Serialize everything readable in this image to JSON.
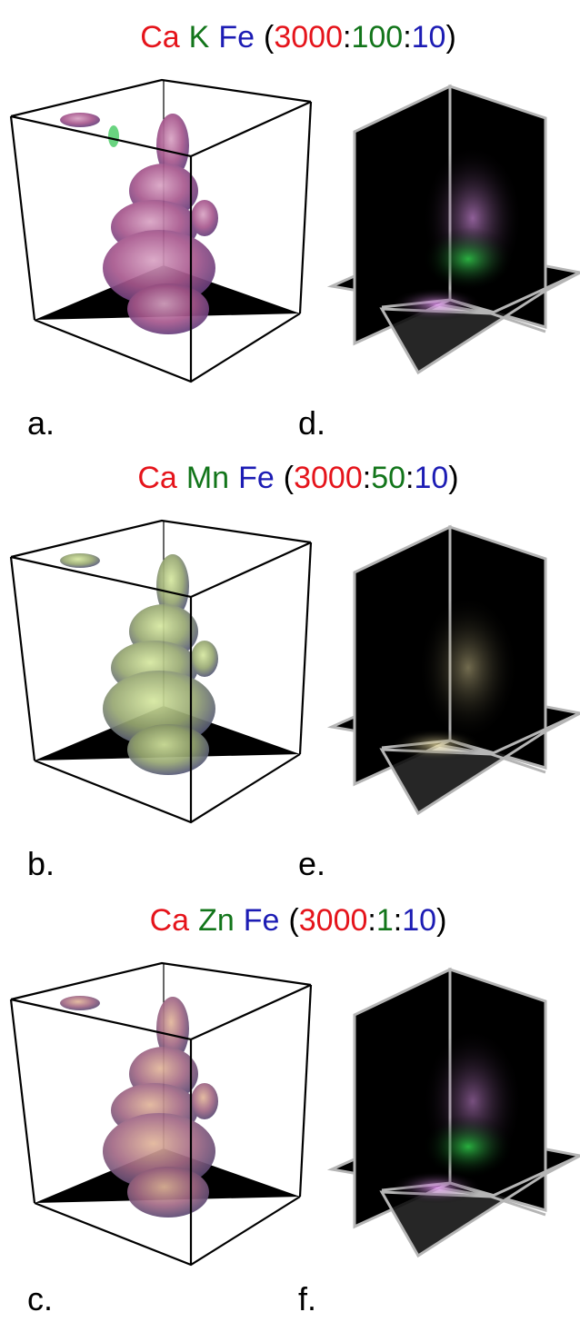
{
  "rows": [
    {
      "title": {
        "elements": [
          {
            "text": "Ca",
            "color": "#e5141b"
          },
          {
            "text": "K",
            "color": "#12751a"
          },
          {
            "text": "Fe",
            "color": "#1c1cb4"
          }
        ],
        "ratio": {
          "open": "(",
          "separator": ":",
          "close": ")",
          "parts": [
            {
              "text": "3000",
              "color": "#e5141b"
            },
            {
              "text": "100",
              "color": "#12751a"
            },
            {
              "text": "10",
              "color": "#1c1cb4"
            }
          ]
        }
      },
      "panels": [
        {
          "label": "a."
        },
        {
          "label": "d."
        }
      ]
    },
    {
      "title": {
        "elements": [
          {
            "text": "Ca",
            "color": "#e5141b"
          },
          {
            "text": "Mn",
            "color": "#12751a"
          },
          {
            "text": "Fe",
            "color": "#1c1cb4"
          }
        ],
        "ratio": {
          "open": "(",
          "separator": ":",
          "close": ")",
          "parts": [
            {
              "text": "3000",
              "color": "#e5141b"
            },
            {
              "text": "50",
              "color": "#12751a"
            },
            {
              "text": "10",
              "color": "#1c1cb4"
            }
          ]
        }
      },
      "panels": [
        {
          "label": "b."
        },
        {
          "label": "e."
        }
      ]
    },
    {
      "title": {
        "elements": [
          {
            "text": "Ca",
            "color": "#e5141b"
          },
          {
            "text": "Zn",
            "color": "#12751a"
          },
          {
            "text": "Fe",
            "color": "#1c1cb4"
          }
        ],
        "ratio": {
          "open": "(",
          "separator": ":",
          "close": ")",
          "parts": [
            {
              "text": "3000",
              "color": "#e5141b"
            },
            {
              "text": "1",
              "color": "#12751a"
            },
            {
              "text": "10",
              "color": "#1c1cb4"
            }
          ]
        }
      },
      "panels": [
        {
          "label": "c."
        },
        {
          "label": "f."
        }
      ]
    }
  ]
}
